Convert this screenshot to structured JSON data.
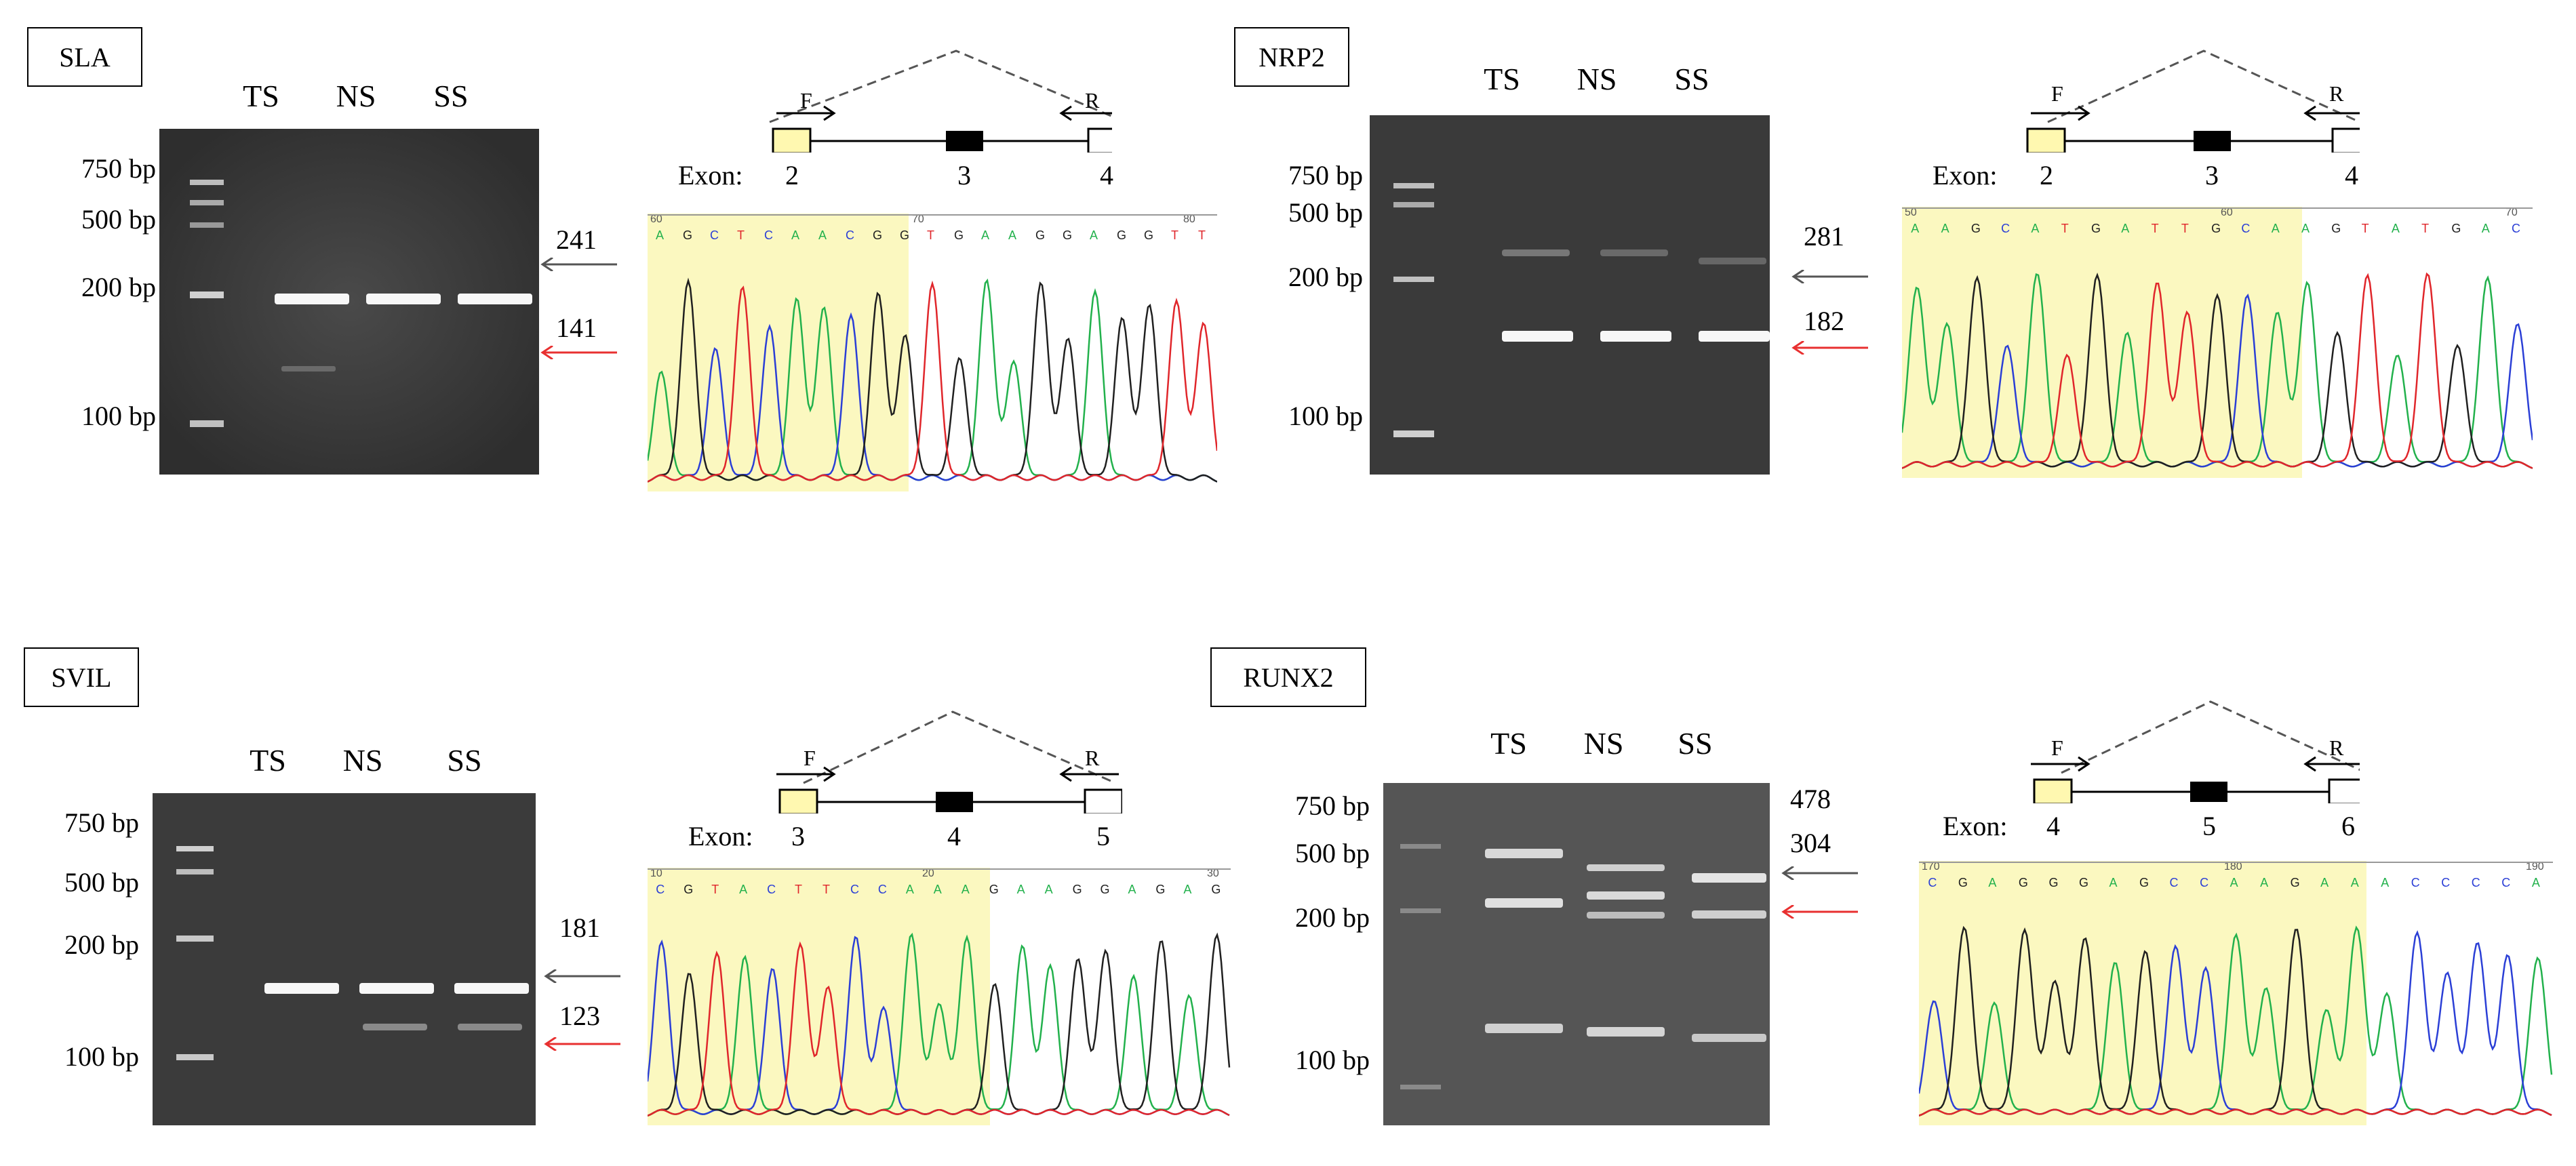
{
  "lanes": [
    "TS",
    "NS",
    "SS"
  ],
  "exon_word": "Exon:",
  "primer_f": "F",
  "primer_r": "R",
  "panels": [
    {
      "gene": "SLA",
      "ladder": [
        "750 bp",
        "500 bp",
        "200 bp",
        "100 bp"
      ],
      "upper_size": "241",
      "lower_size": "141",
      "exons": [
        "2",
        "3",
        "4"
      ],
      "seq_start": "60",
      "seq_mid": "70",
      "seq_end": "80",
      "bases": "AGCTCAACGGTGAAGGAGGTT"
    },
    {
      "gene": "NRP2",
      "ladder": [
        "750 bp",
        "500 bp",
        "200 bp",
        "100 bp"
      ],
      "upper_size": "281",
      "lower_size": "182",
      "exons": [
        "2",
        "3",
        "4"
      ],
      "seq_start": "50",
      "seq_mid": "60",
      "seq_end": "70",
      "bases": "AAGCATGATTGCAAGTATGAC"
    },
    {
      "gene": "SVIL",
      "ladder": [
        "750 bp",
        "500 bp",
        "200 bp",
        "100 bp"
      ],
      "upper_size": "181",
      "lower_size": "123",
      "exons": [
        "3",
        "4",
        "5"
      ],
      "seq_start": "10",
      "seq_mid": "20",
      "seq_end": "30",
      "bases": "CGTACTTCCAAAGAAGGAGAG"
    },
    {
      "gene": "RUNX2",
      "ladder": [
        "750 bp",
        "500 bp",
        "200 bp",
        "100 bp"
      ],
      "upper_size": "478",
      "lower_size": "304",
      "exons": [
        "4",
        "5",
        "6"
      ],
      "seq_start": "170",
      "seq_mid": "180",
      "seq_end": "190",
      "bases": "CGAGGGAGCCAAGAAACCCCA"
    }
  ],
  "colors": {
    "A": "#22b14c",
    "C": "#2b3fd6",
    "G": "#202020",
    "T": "#e0262b",
    "exon_included": "#fff8b0",
    "exon_skipped": "#000000",
    "arrow_upper": "#555555",
    "arrow_lower": "#e83030",
    "highlight": "#fbf8c0"
  }
}
